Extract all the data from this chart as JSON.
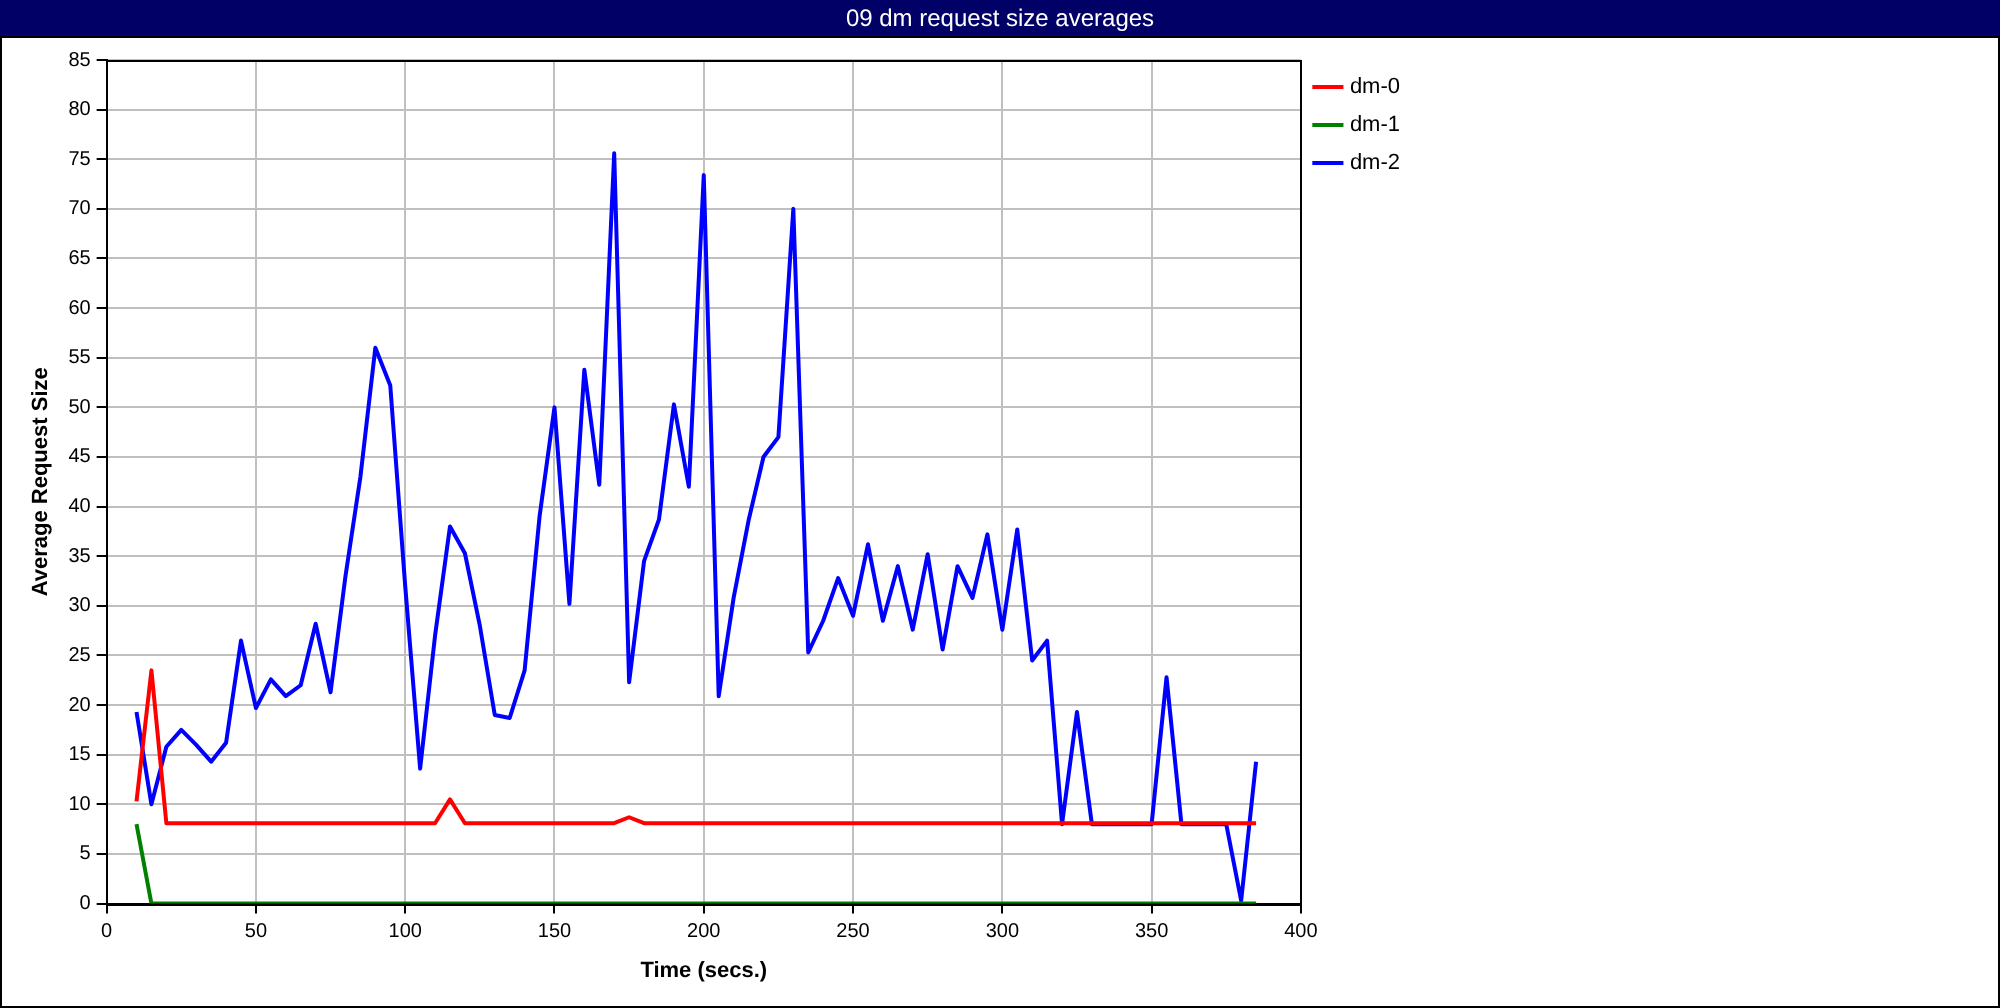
{
  "chart_data": {
    "type": "line",
    "title": "09 dm request size averages",
    "xlabel": "Time (secs.)",
    "ylabel": "Average Request Size",
    "x": [
      10,
      15,
      20,
      25,
      30,
      35,
      40,
      45,
      50,
      55,
      60,
      65,
      70,
      75,
      80,
      85,
      90,
      95,
      100,
      105,
      110,
      115,
      120,
      125,
      130,
      135,
      140,
      145,
      150,
      155,
      160,
      165,
      170,
      175,
      180,
      185,
      190,
      195,
      200,
      205,
      210,
      215,
      220,
      225,
      230,
      235,
      240,
      245,
      250,
      255,
      260,
      265,
      270,
      275,
      280,
      285,
      290,
      295,
      300,
      305,
      310,
      315,
      320,
      325,
      330,
      335,
      340,
      345,
      350,
      355,
      360,
      365,
      370,
      375,
      380,
      385
    ],
    "series": [
      {
        "name": "dm-0",
        "color": "#ff0000",
        "values": [
          10.3,
          23.5,
          8.1,
          8.1,
          8.1,
          8.1,
          8.1,
          8.1,
          8.1,
          8.1,
          8.1,
          8.1,
          8.1,
          8.1,
          8.1,
          8.1,
          8.1,
          8.1,
          8.1,
          8.1,
          8.1,
          10.5,
          8.1,
          8.1,
          8.1,
          8.1,
          8.1,
          8.1,
          8.1,
          8.1,
          8.1,
          8.1,
          8.1,
          8.7,
          8.1,
          8.1,
          8.1,
          8.1,
          8.1,
          8.1,
          8.1,
          8.1,
          8.1,
          8.1,
          8.1,
          8.1,
          8.1,
          8.1,
          8.1,
          8.1,
          8.1,
          8.1,
          8.1,
          8.1,
          8.1,
          8.1,
          8.1,
          8.1,
          8.1,
          8.1,
          8.1,
          8.1,
          8.1,
          8.1,
          8.1,
          8.1,
          8.1,
          8.1,
          8.1,
          8.1,
          8.1,
          8.1,
          8.1,
          8.1,
          8.1,
          8.1
        ]
      },
      {
        "name": "dm-1",
        "color": "#008000",
        "values": [
          8,
          0,
          0,
          0,
          0,
          0,
          0,
          0,
          0,
          0,
          0,
          0,
          0,
          0,
          0,
          0,
          0,
          0,
          0,
          0,
          0,
          0,
          0,
          0,
          0,
          0,
          0,
          0,
          0,
          0,
          0,
          0,
          0,
          0,
          0,
          0,
          0,
          0,
          0,
          0,
          0,
          0,
          0,
          0,
          0,
          0,
          0,
          0,
          0,
          0,
          0,
          0,
          0,
          0,
          0,
          0,
          0,
          0,
          0,
          0,
          0,
          0,
          0,
          0,
          0,
          0,
          0,
          0,
          0,
          0,
          0,
          0,
          0,
          0,
          0,
          0
        ]
      },
      {
        "name": "dm-2",
        "color": "#0000ff",
        "values": [
          19.3,
          10,
          15.8,
          17.5,
          16,
          14.3,
          16.2,
          26.5,
          19.7,
          22.6,
          20.9,
          22,
          28.2,
          21.3,
          33,
          43,
          56,
          52.2,
          32,
          13.6,
          27,
          38,
          35.3,
          28,
          19,
          18.7,
          23.5,
          39,
          50,
          30.2,
          53.8,
          42.2,
          75.6,
          22.3,
          34.5,
          38.7,
          50.3,
          42,
          73.4,
          20.9,
          30.8,
          38.6,
          45,
          47,
          70,
          25.3,
          28.5,
          32.8,
          29,
          36.2,
          28.5,
          34,
          27.6,
          35.2,
          25.6,
          34,
          30.8,
          37.2,
          27.6,
          37.7,
          24.5,
          26.5,
          8,
          19.3,
          8,
          8,
          8,
          8,
          8,
          22.8,
          8,
          8,
          8,
          8,
          0.3,
          14.3
        ]
      }
    ],
    "xlim": [
      0,
      400
    ],
    "xticks": [
      0,
      50,
      100,
      150,
      200,
      250,
      300,
      350,
      400
    ],
    "ylim": [
      0,
      85
    ],
    "yticks": [
      0,
      5,
      10,
      15,
      20,
      25,
      30,
      35,
      40,
      45,
      50,
      55,
      60,
      65,
      70,
      75,
      80,
      85
    ],
    "grid": true,
    "legend": "top right",
    "marker": "none",
    "line_style": "solid"
  }
}
